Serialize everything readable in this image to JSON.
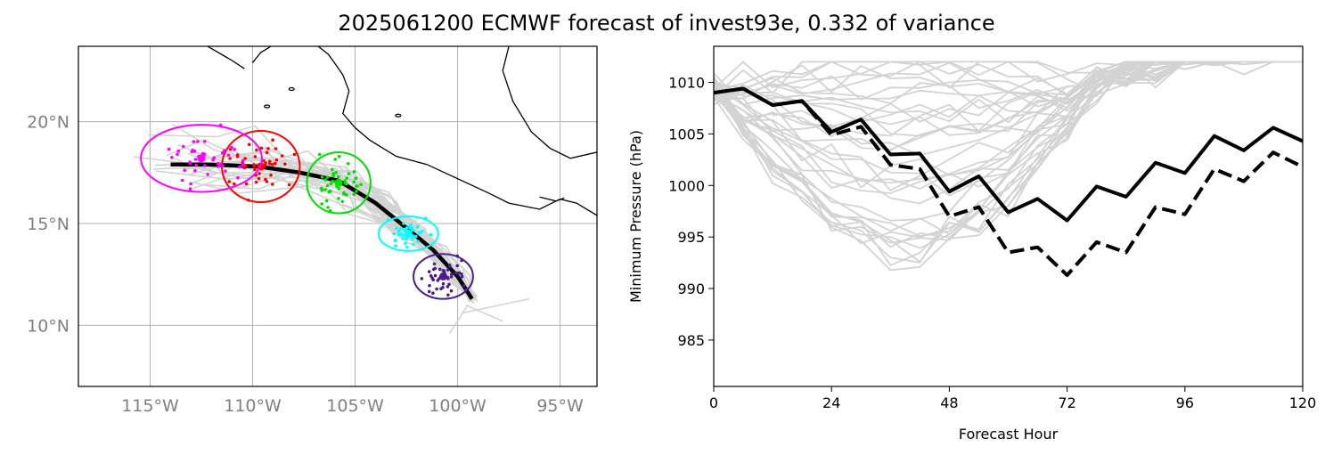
{
  "title": "2025061200 ECMWF forecast of invest93e, 0.332 of variance",
  "chart_data": [
    {
      "type": "scatter",
      "subtype": "map-track",
      "x_ticks": [
        {
          "v": -115,
          "label": "115°W"
        },
        {
          "v": -110,
          "label": "110°W"
        },
        {
          "v": -105,
          "label": "105°W"
        },
        {
          "v": -100,
          "label": "100°W"
        },
        {
          "v": -95,
          "label": "95°W"
        }
      ],
      "y_ticks": [
        {
          "v": 10,
          "label": "10°N"
        },
        {
          "v": 15,
          "label": "15°N"
        },
        {
          "v": 20,
          "label": "20°N"
        }
      ],
      "xlim": [
        -118.5,
        -93.2
      ],
      "ylim": [
        7,
        23.7
      ],
      "grid": true,
      "colors": {
        "ensemble": "#d3d3d3",
        "mean": "#000000",
        "coast": "#000000"
      },
      "mean_track": [
        [
          -99.3,
          11.3
        ],
        [
          -100.0,
          12.4
        ],
        [
          -101.2,
          13.7
        ],
        [
          -102.4,
          14.7
        ],
        [
          -104.0,
          16.0
        ],
        [
          -105.8,
          17.1
        ],
        [
          -107.7,
          17.5
        ],
        [
          -109.7,
          17.8
        ],
        [
          -112.2,
          17.9
        ],
        [
          -114.0,
          17.9
        ]
      ],
      "ellipses": [
        {
          "color": "#4b1c8c",
          "cx": -100.7,
          "cy": 12.4,
          "rx": 1.45,
          "ry": 1.1
        },
        {
          "color": "#00ffff",
          "cx": -102.4,
          "cy": 14.5,
          "rx": 1.45,
          "ry": 0.85
        },
        {
          "color": "#00e000",
          "cx": -105.8,
          "cy": 17.0,
          "rx": 1.55,
          "ry": 1.5
        },
        {
          "color": "#ff0000",
          "cx": -109.6,
          "cy": 17.8,
          "rx": 1.9,
          "ry": 1.75
        },
        {
          "color": "#ff00ff",
          "cx": -112.5,
          "cy": 18.2,
          "rx": 2.95,
          "ry": 1.65
        }
      ],
      "coastline": [
        [
          [
            -93.2,
            15.4
          ],
          [
            -94.2,
            16.0
          ],
          [
            -95.0,
            16.2
          ],
          [
            -96.0,
            15.7
          ],
          [
            -97.5,
            16.0
          ],
          [
            -98.5,
            16.5
          ],
          [
            -100.0,
            17.2
          ],
          [
            -101.5,
            17.9
          ],
          [
            -103.0,
            18.3
          ],
          [
            -104.3,
            19.1
          ],
          [
            -105.0,
            19.7
          ],
          [
            -105.6,
            20.4
          ],
          [
            -105.3,
            21.5
          ],
          [
            -105.6,
            22.3
          ],
          [
            -106.3,
            23.3
          ],
          [
            -106.8,
            23.7
          ]
        ],
        [
          [
            -112.2,
            23.7
          ],
          [
            -111.0,
            23.0
          ],
          [
            -110.4,
            22.6
          ]
        ],
        [
          [
            -109.1,
            23.7
          ],
          [
            -109.6,
            23.4
          ],
          [
            -110.0,
            22.9
          ]
        ],
        [
          [
            -97.5,
            23.7
          ],
          [
            -97.8,
            22.5
          ],
          [
            -97.3,
            21.0
          ],
          [
            -96.4,
            19.5
          ],
          [
            -95.5,
            18.7
          ],
          [
            -94.5,
            18.2
          ],
          [
            -93.2,
            18.5
          ]
        ],
        [
          [
            -96.0,
            16.3
          ],
          [
            -95.2,
            16.1
          ],
          [
            -94.8,
            16.25
          ]
        ]
      ]
    },
    {
      "type": "line",
      "xlabel": "Forecast Hour",
      "ylabel": "Minimum Pressure (hPa)",
      "xlim": [
        0,
        120
      ],
      "ylim": [
        980.5,
        1013.5
      ],
      "x_ticks": [
        0,
        24,
        48,
        72,
        96,
        120
      ],
      "y_ticks": [
        985,
        990,
        995,
        1000,
        1005,
        1010
      ],
      "x": [
        0,
        6,
        12,
        18,
        24,
        30,
        36,
        42,
        48,
        54,
        60,
        66,
        72,
        78,
        84,
        90,
        96,
        102,
        108,
        114,
        120
      ],
      "series": [
        {
          "style": "solid",
          "color": "#000000",
          "values": [
            1009.0,
            1009.4,
            1007.8,
            1008.2,
            1005.2,
            1006.4,
            1003.0,
            1003.1,
            999.4,
            1000.9,
            997.4,
            998.7,
            996.6,
            999.9,
            998.9,
            1002.2,
            1001.2,
            1004.8,
            1003.4,
            1005.6,
            1004.3
          ]
        },
        {
          "style": "dashed",
          "color": "#000000",
          "values": [
            1009.0,
            1009.4,
            1007.8,
            1008.2,
            1004.9,
            1005.7,
            1002.0,
            1001.6,
            997.0,
            997.9,
            993.5,
            994.0,
            991.3,
            994.5,
            993.5,
            997.9,
            997.2,
            1001.6,
            1000.4,
            1003.2,
            1001.8
          ]
        }
      ]
    }
  ]
}
